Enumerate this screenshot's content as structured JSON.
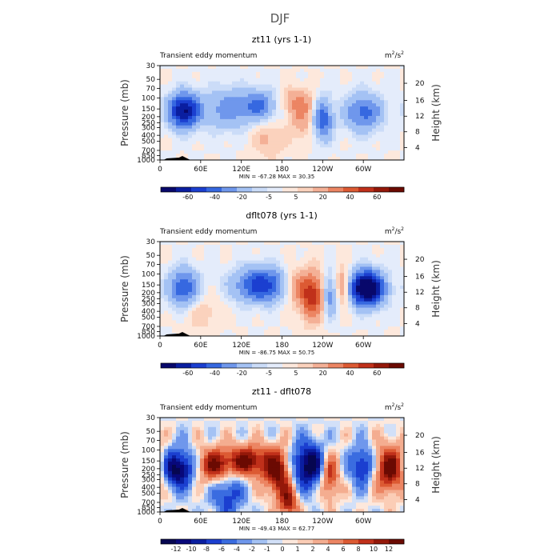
{
  "figure_title": "DJF",
  "colors": {
    "momentum_palette": [
      "#08086b",
      "#0a1ea0",
      "#1b3fd0",
      "#3668e0",
      "#6f97ec",
      "#a4c2f4",
      "#cbdcf8",
      "#e4ecfb",
      "#fde8dc",
      "#fbd2bd",
      "#f4b096",
      "#ec8563",
      "#dc5a33",
      "#c0301a",
      "#941809",
      "#6b0a02"
    ],
    "diff_palette": [
      "#060650",
      "#08087a",
      "#0a1ea0",
      "#1b3fd0",
      "#3a6ce0",
      "#6f97ec",
      "#a4c2f4",
      "#d2e0f8",
      "#fde8dc",
      "#fbcdb6",
      "#f4ad90",
      "#ec8563",
      "#dc5a33",
      "#c0301a",
      "#941809",
      "#6b0a02"
    ],
    "background_shade": "#fde8dc"
  },
  "chart_data": [
    {
      "type": "contour",
      "title": "zt11 (yrs 1-1)",
      "left_string": "Transient eddy momentum",
      "units": "m",
      "units_sup1": "2",
      "units_mid": "/s",
      "units_sup2": "2",
      "ylabel": "Pressure (mb)",
      "ylabel_right": "Height (km)",
      "pressure_ticks": [
        "30",
        "50",
        "70",
        "100",
        "150",
        "200",
        "250",
        "300",
        "400",
        "500",
        "700",
        "850",
        "1000"
      ],
      "height_ticks": [
        "20",
        "16",
        "12",
        "8",
        "4"
      ],
      "lon_ticks": [
        "0",
        "60E",
        "120E",
        "180",
        "120W",
        "60W"
      ],
      "min_max_label": "MIN = -67.28  MAX =  30.35",
      "stats": {
        "min": -67.28,
        "max": 30.35
      },
      "colorbar_labels": [
        "-60",
        "-40",
        "-20",
        "-5",
        "5",
        "20",
        "40",
        "60"
      ],
      "colorbar_levels": [
        -70,
        -60,
        -50,
        -40,
        -30,
        -20,
        -10,
        -5,
        0,
        5,
        10,
        20,
        30,
        40,
        50,
        60,
        70
      ],
      "features": [
        {
          "lon": 35,
          "p": 160,
          "v": -62,
          "w": 16,
          "h": 0.45
        },
        {
          "lon": 100,
          "p": 150,
          "v": -24,
          "w": 26,
          "h": 0.55
        },
        {
          "lon": 150,
          "p": 130,
          "v": -30,
          "w": 20,
          "h": 0.4
        },
        {
          "lon": 195,
          "p": 115,
          "v": 16,
          "w": 22,
          "h": 0.35
        },
        {
          "lon": 210,
          "p": 200,
          "v": 18,
          "w": 12,
          "h": 0.55
        },
        {
          "lon": 240,
          "p": 220,
          "v": -38,
          "w": 10,
          "h": 0.55
        },
        {
          "lon": 300,
          "p": 170,
          "v": -34,
          "w": 20,
          "h": 0.5
        },
        {
          "lon": 160,
          "p": 450,
          "v": 12,
          "w": 18,
          "h": 0.5
        }
      ]
    },
    {
      "type": "contour",
      "title": "dflt078 (yrs 1-1)",
      "left_string": "Transient eddy momentum",
      "units": "m",
      "units_sup1": "2",
      "units_mid": "/s",
      "units_sup2": "2",
      "ylabel": "Pressure (mb)",
      "ylabel_right": "Height (km)",
      "pressure_ticks": [
        "30",
        "50",
        "70",
        "100",
        "150",
        "200",
        "250",
        "300",
        "400",
        "500",
        "700",
        "850",
        "1000"
      ],
      "height_ticks": [
        "20",
        "16",
        "12",
        "8",
        "4"
      ],
      "lon_ticks": [
        "0",
        "60E",
        "120E",
        "180",
        "120W",
        "60W"
      ],
      "min_max_label": "MIN = -86.75  MAX =  50.75",
      "stats": {
        "min": -86.75,
        "max": 50.75
      },
      "colorbar_labels": [
        "-60",
        "-40",
        "-20",
        "-5",
        "5",
        "20",
        "40",
        "60"
      ],
      "colorbar_levels": [
        -70,
        -60,
        -50,
        -40,
        -30,
        -20,
        -10,
        -5,
        0,
        5,
        10,
        20,
        30,
        40,
        50,
        60,
        70
      ],
      "features": [
        {
          "lon": 35,
          "p": 170,
          "v": -40,
          "w": 16,
          "h": 0.5
        },
        {
          "lon": 150,
          "p": 150,
          "v": -48,
          "w": 28,
          "h": 0.45
        },
        {
          "lon": 200,
          "p": 160,
          "v": 24,
          "w": 14,
          "h": 0.45
        },
        {
          "lon": 225,
          "p": 230,
          "v": 46,
          "w": 12,
          "h": 0.6
        },
        {
          "lon": 250,
          "p": 220,
          "v": -28,
          "w": 8,
          "h": 0.55
        },
        {
          "lon": 270,
          "p": 160,
          "v": 26,
          "w": 8,
          "h": 0.5
        },
        {
          "lon": 305,
          "p": 170,
          "v": -82,
          "w": 18,
          "h": 0.45
        },
        {
          "lon": 60,
          "p": 400,
          "v": 10,
          "w": 20,
          "h": 0.5
        }
      ]
    },
    {
      "type": "contour",
      "title": "zt11 - dflt078",
      "left_string": "Transient eddy momentum",
      "units": "m",
      "units_sup1": "2",
      "units_mid": "/s",
      "units_sup2": "2",
      "ylabel": "Pressure (mb)",
      "ylabel_right": "Height (km)",
      "pressure_ticks": [
        "30",
        "50",
        "70",
        "100",
        "150",
        "200",
        "250",
        "300",
        "400",
        "500",
        "700",
        "850",
        "1000"
      ],
      "height_ticks": [
        "20",
        "16",
        "12",
        "8",
        "4"
      ],
      "lon_ticks": [
        "0",
        "60E",
        "120E",
        "180",
        "120W",
        "60W"
      ],
      "min_max_label": "MIN = -49.43  MAX =  62.77",
      "stats": {
        "min": -49.43,
        "max": 62.77
      },
      "colorbar_labels": [
        "-12",
        "-10",
        "-8",
        "-6",
        "-4",
        "-2",
        "-1",
        "0",
        "1",
        "2",
        "4",
        "6",
        "8",
        "10",
        "12"
      ],
      "colorbar_levels": [
        -14,
        -12,
        -10,
        -8,
        -6,
        -4,
        -2,
        -1,
        0,
        1,
        2,
        4,
        6,
        8,
        10,
        12,
        14
      ],
      "features": [
        {
          "lon": 25,
          "p": 200,
          "v": -14,
          "w": 18,
          "h": 0.5
        },
        {
          "lon": 80,
          "p": 180,
          "v": 12,
          "w": 18,
          "h": 0.45
        },
        {
          "lon": 130,
          "p": 150,
          "v": 13,
          "w": 22,
          "h": 0.4
        },
        {
          "lon": 175,
          "p": 230,
          "v": 14,
          "w": 14,
          "h": 0.6
        },
        {
          "lon": 220,
          "p": 180,
          "v": -14,
          "w": 20,
          "h": 0.6
        },
        {
          "lon": 250,
          "p": 250,
          "v": 12,
          "w": 10,
          "h": 0.6
        },
        {
          "lon": 300,
          "p": 180,
          "v": -10,
          "w": 14,
          "h": 0.5
        },
        {
          "lon": 340,
          "p": 200,
          "v": 14,
          "w": 18,
          "h": 0.6
        },
        {
          "lon": 100,
          "p": 500,
          "v": -8,
          "w": 16,
          "h": 0.6
        },
        {
          "lon": 190,
          "p": 700,
          "v": 10,
          "w": 10,
          "h": 0.4
        }
      ]
    }
  ]
}
